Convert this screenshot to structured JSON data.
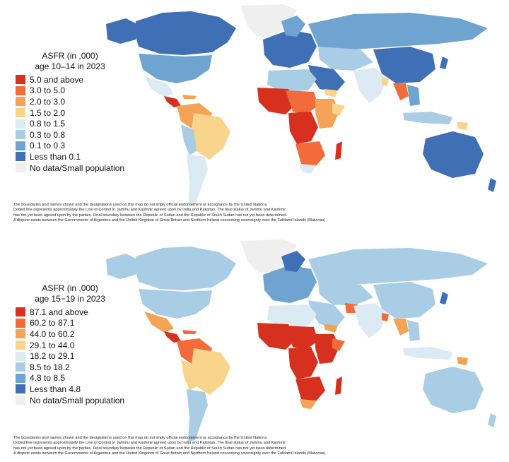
{
  "maps": [
    {
      "title_line1": "ASFR (in ,000)",
      "title_line2": "age 10–14 in 2023",
      "legend": [
        {
          "label": "5.0 and above",
          "color": "#d7301f"
        },
        {
          "label": "3.0 to 5.0",
          "color": "#f26b3a"
        },
        {
          "label": "2.0 to 3.0",
          "color": "#f5a357"
        },
        {
          "label": "1.5 to 2.0",
          "color": "#f9d48d"
        },
        {
          "label": "0.8 to 1.5",
          "color": "#dcebf3"
        },
        {
          "label": "0.3 to 0.8",
          "color": "#a8cde4"
        },
        {
          "label": "0.1 to 0.3",
          "color": "#6ea4cf"
        },
        {
          "label": "Less than 0.1",
          "color": "#3f6fb5"
        },
        {
          "label": "No data/Small population",
          "color": "#efefef"
        }
      ],
      "notes": [
        "The boundaries and names shown and the designations used on this map do not imply official endorsement or acceptance by the United Nations.",
        "Dotted line represents approximately the Line of Control in Jammu and Kashmir agreed upon by India and Pakistan. The final status of Jammu and Kashmir",
        "has not yet been agreed upon by the parties. Final boundary between the Republic of Sudan and the Republic of South Sudan has not yet been determined.",
        "A dispute exists between the Governments of Argentina and the United Kingdom of Great Britain and Northern Ireland concerning sovereignty over the Falkland Islands (Malvinas)."
      ]
    },
    {
      "title_line1": "ASFR (in ,000)",
      "title_line2": "age 15−19 in 2023",
      "legend": [
        {
          "label": "87.1 and above",
          "color": "#d7301f"
        },
        {
          "label": "60.2 to 87.1",
          "color": "#f26b3a"
        },
        {
          "label": "44.0 to 60.2",
          "color": "#f5a357"
        },
        {
          "label": "29.1 to 44.0",
          "color": "#f9d48d"
        },
        {
          "label": "18.2 to 29.1",
          "color": "#dcebf3"
        },
        {
          "label": "8.5 to 18.2",
          "color": "#a8cde4"
        },
        {
          "label": "4.8 to 8.5",
          "color": "#6ea4cf"
        },
        {
          "label": "Less than 4.8",
          "color": "#3f6fb5"
        },
        {
          "label": "No data/Small population",
          "color": "#efefef"
        }
      ],
      "notes": [
        "The boundaries and names shown and the designations used on this map do not imply official endorsement or acceptance by the United Nations.",
        "Dotted line represents approximately the Line of Control in Jammu and Kashmir agreed upon by India and Pakistan. The final status of Jammu and Kashmir",
        "has not yet been agreed upon by the parties. Final boundary between the Republic of Sudan and the Republic of South Sudan has not yet been determined.",
        "A dispute exists between the Governments of Argentina and the United Kingdom of Great Britain and Northern Ireland concerning sovereignty over the Falkland Islands (Malvinas)."
      ]
    }
  ]
}
